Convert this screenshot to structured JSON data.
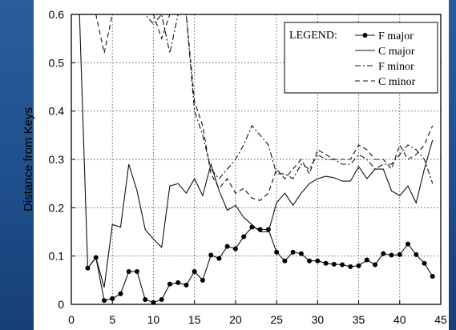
{
  "chart_data": {
    "type": "line",
    "ylabel": "Distance from Keys",
    "xlabel": "",
    "title": "",
    "xlim": [
      0,
      45
    ],
    "ylim": [
      0,
      0.6
    ],
    "x_ticks": [
      0,
      5,
      10,
      15,
      20,
      25,
      30,
      35,
      40,
      45
    ],
    "y_ticks": [
      0,
      0.1,
      0.2,
      0.3,
      0.4,
      0.5,
      0.6
    ],
    "x_tick_labels": [
      "0",
      "5",
      "10",
      "15",
      "20",
      "25",
      "30",
      "35",
      "40",
      "45"
    ],
    "y_tick_labels": [
      "0",
      "0.1",
      "0.2",
      "0.3",
      "0.4",
      "0.5",
      "0.6"
    ],
    "grid": true,
    "legend_title": "LEGEND:",
    "legend_position": "top-right",
    "series": [
      {
        "name": "F major",
        "style": "solid-dots",
        "x": [
          2,
          3,
          4,
          5,
          6,
          7,
          8,
          9,
          10,
          11,
          12,
          13,
          14,
          15,
          16,
          17,
          18,
          19,
          20,
          21,
          22,
          23,
          24,
          25,
          26,
          27,
          28,
          29,
          30,
          31,
          32,
          33,
          34,
          35,
          36,
          37,
          38,
          39,
          40,
          41,
          42,
          43,
          44
        ],
        "y": [
          0.075,
          0.097,
          0.008,
          0.012,
          0.022,
          0.068,
          0.068,
          0.01,
          0.004,
          0.01,
          0.042,
          0.045,
          0.04,
          0.068,
          0.05,
          0.102,
          0.095,
          0.12,
          0.115,
          0.14,
          0.16,
          0.155,
          0.155,
          0.108,
          0.09,
          0.108,
          0.105,
          0.09,
          0.09,
          0.085,
          0.083,
          0.082,
          0.078,
          0.08,
          0.092,
          0.082,
          0.105,
          0.102,
          0.103,
          0.125,
          0.103,
          0.085,
          0.058
        ]
      },
      {
        "name": "C major",
        "style": "solid",
        "x": [
          1,
          2,
          3,
          4,
          5,
          6,
          7,
          8,
          9,
          10,
          11,
          12,
          13,
          14,
          15,
          16,
          17,
          18,
          19,
          20,
          21,
          22,
          23,
          24,
          25,
          26,
          27,
          28,
          29,
          30,
          31,
          32,
          33,
          34,
          35,
          36,
          37,
          38,
          39,
          40,
          41,
          42,
          43,
          44
        ],
        "y": [
          0.6,
          0.075,
          0.097,
          0.035,
          0.165,
          0.16,
          0.29,
          0.235,
          0.155,
          0.135,
          0.118,
          0.245,
          0.25,
          0.23,
          0.26,
          0.225,
          0.29,
          0.235,
          0.195,
          0.205,
          0.18,
          0.165,
          0.15,
          0.15,
          0.21,
          0.23,
          0.205,
          0.23,
          0.25,
          0.26,
          0.265,
          0.262,
          0.255,
          0.255,
          0.285,
          0.26,
          0.28,
          0.28,
          0.235,
          0.225,
          0.245,
          0.21,
          0.28,
          0.34
        ]
      },
      {
        "name": "F minor",
        "style": "dash-dot",
        "x": [
          1,
          2,
          3,
          4,
          5,
          6,
          7,
          8,
          9,
          10,
          11,
          12,
          13,
          14,
          15,
          16,
          17,
          18,
          19,
          20,
          21,
          22,
          23,
          24,
          25,
          26,
          27,
          28,
          29,
          30,
          31,
          32,
          33,
          34,
          35,
          36,
          37,
          38,
          39,
          40,
          41,
          42,
          43,
          44
        ],
        "y": [
          0.6,
          0.6,
          0.6,
          0.6,
          0.6,
          0.6,
          0.6,
          0.6,
          0.6,
          0.58,
          0.6,
          0.52,
          0.6,
          0.6,
          0.4,
          0.35,
          0.28,
          0.26,
          0.28,
          0.3,
          0.33,
          0.37,
          0.35,
          0.33,
          0.27,
          0.27,
          0.26,
          0.29,
          0.28,
          0.31,
          0.3,
          0.3,
          0.29,
          0.29,
          0.31,
          0.3,
          0.28,
          0.29,
          0.29,
          0.31,
          0.33,
          0.32,
          0.3,
          0.25
        ]
      },
      {
        "name": "C minor",
        "style": "dashed",
        "x": [
          1,
          2,
          3,
          4,
          5,
          6,
          7,
          8,
          9,
          10,
          11,
          12,
          13,
          14,
          15,
          16,
          17,
          18,
          19,
          20,
          21,
          22,
          23,
          24,
          25,
          26,
          27,
          28,
          29,
          30,
          31,
          32,
          33,
          34,
          35,
          36,
          37,
          38,
          39,
          40,
          41,
          42,
          43,
          44
        ],
        "y": [
          0.6,
          0.6,
          0.6,
          0.52,
          0.6,
          0.6,
          0.6,
          0.6,
          0.6,
          0.6,
          0.55,
          0.6,
          0.6,
          0.6,
          0.42,
          0.37,
          0.27,
          0.24,
          0.26,
          0.23,
          0.24,
          0.22,
          0.215,
          0.23,
          0.28,
          0.26,
          0.28,
          0.3,
          0.27,
          0.32,
          0.31,
          0.3,
          0.3,
          0.3,
          0.33,
          0.32,
          0.3,
          0.3,
          0.28,
          0.33,
          0.3,
          0.31,
          0.33,
          0.37
        ]
      }
    ]
  }
}
